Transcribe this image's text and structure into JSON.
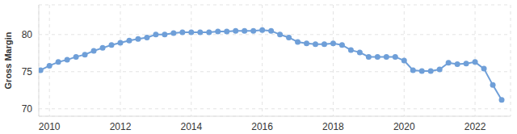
{
  "chart_data": {
    "type": "line",
    "y_label": "Gross Margin",
    "x": [
      2009.75,
      2010.0,
      2010.25,
      2010.5,
      2010.75,
      2011.0,
      2011.25,
      2011.5,
      2011.75,
      2012.0,
      2012.25,
      2012.5,
      2012.75,
      2013.0,
      2013.25,
      2013.5,
      2013.75,
      2014.0,
      2014.25,
      2014.5,
      2014.75,
      2015.0,
      2015.25,
      2015.5,
      2015.75,
      2016.0,
      2016.25,
      2016.5,
      2016.75,
      2017.0,
      2017.25,
      2017.5,
      2017.75,
      2018.0,
      2018.25,
      2018.5,
      2018.75,
      2019.0,
      2019.25,
      2019.5,
      2019.75,
      2020.0,
      2020.25,
      2020.5,
      2020.75,
      2021.0,
      2021.25,
      2021.5,
      2021.75,
      2022.0,
      2022.25,
      2022.5,
      2022.75
    ],
    "values": [
      75.2,
      75.8,
      76.3,
      76.6,
      77.0,
      77.3,
      77.8,
      78.2,
      78.6,
      78.9,
      79.2,
      79.4,
      79.6,
      80.0,
      80.0,
      80.2,
      80.3,
      80.3,
      80.3,
      80.3,
      80.4,
      80.4,
      80.5,
      80.5,
      80.5,
      80.6,
      80.5,
      80.0,
      79.6,
      79.0,
      78.8,
      78.7,
      78.7,
      78.8,
      78.6,
      77.9,
      77.6,
      77.0,
      77.0,
      77.0,
      77.0,
      76.5,
      75.2,
      75.1,
      75.1,
      75.3,
      76.2,
      76.0,
      76.1,
      76.3,
      75.4,
      73.2,
      71.2
    ],
    "color": "#6f9fd8",
    "marker": "circle",
    "xlim": [
      2009.7,
      2023.0
    ],
    "xticks": [
      2010,
      2012,
      2014,
      2016,
      2018,
      2020,
      2022
    ],
    "ylim": [
      69,
      84
    ],
    "yticks": [
      70,
      75,
      80
    ],
    "grid": true
  }
}
